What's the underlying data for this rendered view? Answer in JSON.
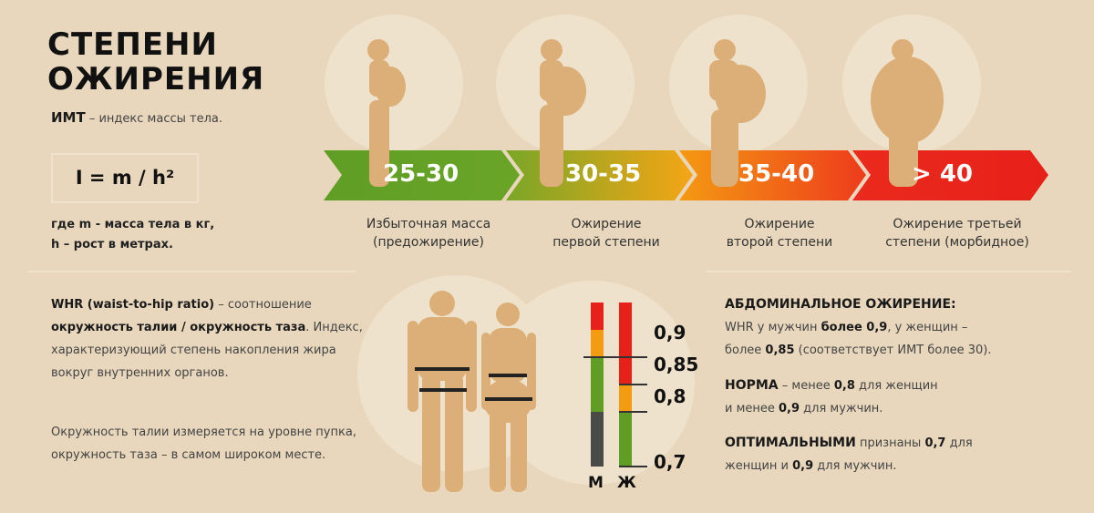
{
  "title": {
    "line1": "СТЕПЕНИ",
    "line2": "ОЖИРЕНИЯ"
  },
  "bmi": {
    "abbr": "ИМТ",
    "desc": " – индекс массы тела.",
    "formula": "I = m / h²",
    "where1": "где m - масса тела в кг,",
    "where2": "h – рост в метрах."
  },
  "scale": [
    {
      "range": "25-30",
      "label1": "Избыточная масса",
      "label2": "(предожирение)",
      "colors": [
        "#5f9d25",
        "#6aa527"
      ]
    },
    {
      "range": "30-35",
      "label1": "Ожирение",
      "label2": "первой степени",
      "colors": [
        "#7aa627",
        "#f5a515"
      ]
    },
    {
      "range": "35-40",
      "label1": "Ожирение",
      "label2": "второй степени",
      "colors": [
        "#f49a12",
        "#ee3b1c"
      ]
    },
    {
      "range": "> 40",
      "label1": "Ожирение третьей",
      "label2": "степени (морбидное)",
      "colors": [
        "#ea2a1c",
        "#e8201a"
      ]
    }
  ],
  "whr": {
    "bold1": "WHR (waist-to-hip ratio)",
    "text1": " – соотношение",
    "bold2": "окружность талии / окружность таза",
    "text2": ". Индекс, характеризующий степень накопления жира вокруг внутренних органов.",
    "para2": "Окружность талии измеряется на уровне пупка, окружность таза – в самом широком месте."
  },
  "whr_scale": {
    "ticks": [
      "0,9",
      "0,85",
      "0,8",
      "0,7"
    ],
    "men_label": "М",
    "women_label": "Ж",
    "men_segments": [
      {
        "from": 0.7,
        "to": 0.8,
        "color": "#4a4a48"
      },
      {
        "from": 0.8,
        "to": 0.9,
        "color": "#5f9d25"
      },
      {
        "from": 0.9,
        "to": 0.95,
        "color": "#f39c12"
      },
      {
        "from": 0.95,
        "to": 1.0,
        "color": "#e8201a"
      }
    ],
    "women_segments": [
      {
        "from": 0.7,
        "to": 0.8,
        "color": "#5f9d25"
      },
      {
        "from": 0.8,
        "to": 0.85,
        "color": "#f39c12"
      },
      {
        "from": 0.85,
        "to": 1.0,
        "color": "#e8201a"
      }
    ]
  },
  "right": {
    "h1": "АБДОМИНАЛЬНОЕ ОЖИРЕНИЕ:",
    "p1a": "WHR у мужчин ",
    "p1b": "более 0,9",
    "p1c": ", у женщин –",
    "p1d": "более ",
    "p1e": "0,85",
    "p1f": " (соответствует ИМТ более 30).",
    "h2": "НОРМА",
    "p2a": " – менее ",
    "p2b": "0,8",
    "p2c": " для женщин",
    "p2d": "и менее ",
    "p2e": "0,9",
    "p2f": " для мужчин.",
    "h3": "ОПТИМАЛЬНЫМИ",
    "p3a": " признаны ",
    "p3b": "0,7",
    "p3c": " для",
    "p3d": "женщин и ",
    "p3e": "0,9",
    "p3f": " для мужчин."
  }
}
